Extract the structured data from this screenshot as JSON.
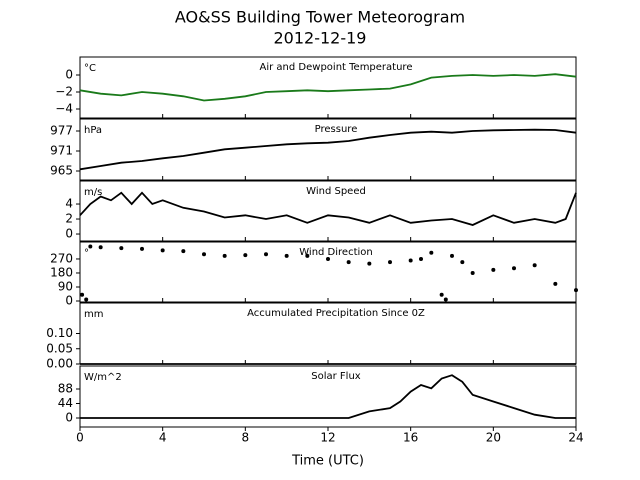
{
  "title": "AO&SS Building Tower Meteorogram",
  "subtitle": "2012-12-19",
  "chart_data": [
    {
      "type": "line",
      "title": "Air and Dewpoint Temperature",
      "unit": "°C",
      "color": "#1a7a1a",
      "x": [
        0,
        1,
        2,
        3,
        4,
        5,
        6,
        7,
        8,
        9,
        10,
        11,
        12,
        13,
        14,
        15,
        16,
        17,
        18,
        19,
        20,
        21,
        22,
        23,
        24
      ],
      "values": [
        -1.8,
        -2.2,
        -2.4,
        -2.0,
        -2.2,
        -2.5,
        -3.0,
        -2.8,
        -2.5,
        -2.0,
        -1.9,
        -1.8,
        -1.9,
        -1.8,
        -1.7,
        -1.6,
        -1.1,
        -0.3,
        -0.1,
        0,
        -0.1,
        0,
        -0.1,
        0.1,
        -0.2
      ],
      "xlim": [
        0,
        24
      ],
      "xticks": [
        0,
        4,
        8,
        12,
        16,
        20,
        24
      ],
      "ylim": [
        -5.06,
        2.12
      ],
      "yticks": [
        {
          "value": -4,
          "label": "−4"
        },
        {
          "value": -2,
          "label": "−2"
        },
        0
      ]
    },
    {
      "type": "line",
      "title": "Pressure",
      "unit": "hPa",
      "color": "#000000",
      "x": [
        0,
        1,
        2,
        3,
        4,
        5,
        6,
        7,
        8,
        9,
        10,
        11,
        12,
        13,
        14,
        15,
        16,
        17,
        18,
        19,
        20,
        21,
        22,
        23,
        24
      ],
      "values": [
        965.5,
        966.5,
        967.5,
        968,
        968.8,
        969.5,
        970.5,
        971.5,
        972,
        972.5,
        973,
        973.3,
        973.5,
        974,
        975,
        975.8,
        976.5,
        976.8,
        976.5,
        977,
        977.2,
        977.3,
        977.4,
        977.3,
        976.5
      ],
      "xlim": [
        0,
        24
      ],
      "xticks": [
        0,
        4,
        8,
        12,
        16,
        20,
        24
      ],
      "ylim": [
        962.3,
        980.6
      ],
      "yticks": [
        965,
        971,
        977
      ]
    },
    {
      "type": "line",
      "title": "Wind Speed",
      "unit": "m/s",
      "color": "#000000",
      "x": [
        0,
        0.5,
        1,
        1.5,
        2,
        2.5,
        3,
        3.5,
        4,
        5,
        6,
        7,
        8,
        9,
        10,
        11,
        12,
        13,
        14,
        15,
        16,
        17,
        18,
        19,
        20,
        21,
        22,
        23,
        23.5,
        24
      ],
      "values": [
        2.5,
        4,
        5,
        4.5,
        5.5,
        4,
        5.5,
        4,
        4.5,
        3.5,
        3,
        2.2,
        2.5,
        2,
        2.5,
        1.5,
        2.5,
        2.2,
        1.5,
        2.5,
        1.5,
        1.8,
        2,
        1.2,
        2.5,
        1.5,
        2,
        1.5,
        2,
        5.5
      ],
      "xlim": [
        0,
        24
      ],
      "xticks": [
        0,
        4,
        8,
        12,
        16,
        20,
        24
      ],
      "ylim": [
        -0.93,
        7.07
      ],
      "yticks": [
        0,
        2,
        4
      ]
    },
    {
      "type": "scatter",
      "title": "Wind Direction",
      "unit": "°",
      "color": "#000000",
      "x": [
        0.1,
        0.3,
        0.5,
        1,
        2,
        3,
        4,
        5,
        6,
        7,
        8,
        9,
        10,
        11,
        12,
        13,
        14,
        15,
        16,
        16.5,
        17,
        17.5,
        17.7,
        18,
        18.5,
        19,
        20,
        21,
        22,
        23,
        24
      ],
      "values": [
        40,
        10,
        350,
        345,
        340,
        335,
        325,
        320,
        300,
        290,
        295,
        300,
        290,
        290,
        270,
        250,
        240,
        250,
        260,
        270,
        310,
        40,
        10,
        290,
        250,
        180,
        200,
        210,
        230,
        110,
        70
      ],
      "xlim": [
        0,
        24
      ],
      "xticks": [
        0,
        4,
        8,
        12,
        16,
        20,
        24
      ],
      "ylim": [
        -6.4,
        379
      ],
      "yticks": [
        0,
        90,
        180,
        270
      ]
    },
    {
      "type": "line",
      "title": "Accumulated Precipitation Since 0Z",
      "unit": "mm",
      "color": "#000000",
      "x": [
        0,
        24
      ],
      "values": [
        0,
        0
      ],
      "xlim": [
        0,
        24
      ],
      "xticks": [
        0,
        4,
        8,
        12,
        16,
        20,
        24
      ],
      "ylim": [
        0,
        0.2
      ],
      "yticks": [
        {
          "value": 0,
          "label": "0.00"
        },
        0.05,
        {
          "value": 0.1,
          "label": "0.10"
        }
      ]
    },
    {
      "type": "line",
      "title": "Solar Flux",
      "unit": "W/m^2",
      "color": "#000000",
      "x": [
        0,
        13,
        14,
        15,
        15.5,
        16,
        16.5,
        17,
        17.5,
        18,
        18.5,
        19,
        20,
        21,
        22,
        23,
        24
      ],
      "values": [
        0,
        0,
        20,
        30,
        50,
        80,
        100,
        90,
        120,
        130,
        110,
        70,
        50,
        30,
        10,
        0,
        0
      ],
      "xlim": [
        0,
        24
      ],
      "xticks": [
        0,
        4,
        8,
        12,
        16,
        20,
        24
      ],
      "ylim": [
        -27.3,
        157.8
      ],
      "yticks": [
        0,
        44,
        88
      ],
      "xlabel": "Time (UTC)"
    }
  ]
}
